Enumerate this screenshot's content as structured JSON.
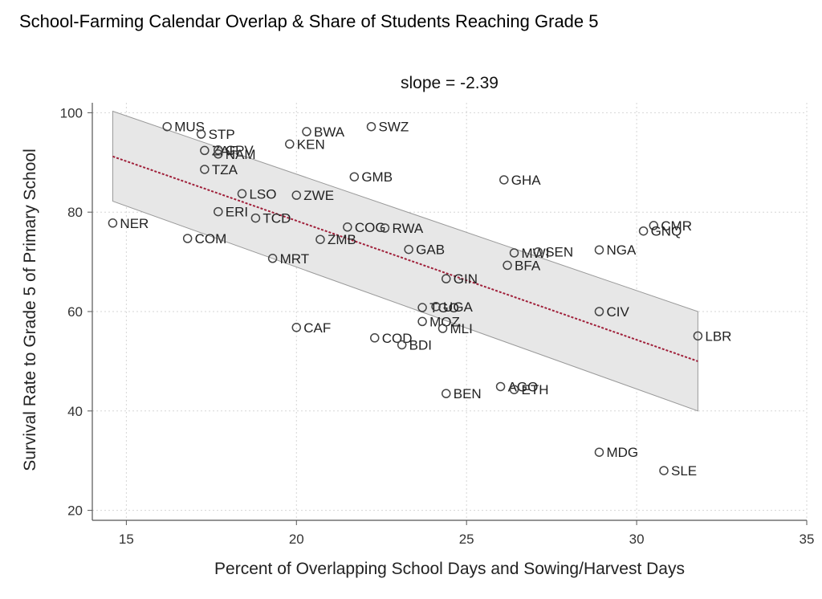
{
  "figure": {
    "title": "School-Farming Calendar Overlap & Share of Students Reaching Grade 5"
  },
  "chart_data": {
    "type": "scatter",
    "subtitle": "slope = -2.39",
    "xlabel": "Percent of Overlapping School Days and Sowing/Harvest Days",
    "ylabel": "Survival Rate to Grade 5 of Primary School",
    "xlim": [
      14,
      35
    ],
    "ylim": [
      18,
      102
    ],
    "xticks": [
      15,
      20,
      25,
      30,
      35
    ],
    "yticks": [
      20,
      40,
      60,
      80,
      100
    ],
    "grid": true,
    "colors": {
      "marker": "#444444",
      "fit": "#a0203a",
      "band": "#e7e7e7",
      "band_edge": "#999999",
      "grid": "#d6d6d6",
      "axis": "#555555"
    },
    "fit_line": {
      "x": [
        14.6,
        31.8
      ],
      "y": [
        91.2,
        50.0
      ]
    },
    "confidence_band": {
      "x": [
        14.6,
        31.8
      ],
      "upper": [
        100.3,
        60.0
      ],
      "lower": [
        82.2,
        40.0
      ]
    },
    "points": [
      {
        "label": "MUS",
        "x": 16.2,
        "y": 97.2
      },
      {
        "label": "STP",
        "x": 17.2,
        "y": 95.7
      },
      {
        "label": "ZAF",
        "x": 17.3,
        "y": 92.4
      },
      {
        "label": "CPV",
        "x": 17.7,
        "y": 92.5
      },
      {
        "label": "NAM",
        "x": 17.7,
        "y": 91.7
      },
      {
        "label": "TZA",
        "x": 17.3,
        "y": 88.6
      },
      {
        "label": "BWA",
        "x": 20.3,
        "y": 96.2
      },
      {
        "label": "SWZ",
        "x": 22.2,
        "y": 97.2
      },
      {
        "label": "KEN",
        "x": 19.8,
        "y": 93.7
      },
      {
        "label": "GMB",
        "x": 21.7,
        "y": 87.1
      },
      {
        "label": "GHA",
        "x": 26.1,
        "y": 86.5
      },
      {
        "label": "LSO",
        "x": 18.4,
        "y": 83.7
      },
      {
        "label": "ZWE",
        "x": 20.0,
        "y": 83.4
      },
      {
        "label": "ERI",
        "x": 17.7,
        "y": 80.1
      },
      {
        "label": "TCD",
        "x": 18.8,
        "y": 78.8
      },
      {
        "label": "NER",
        "x": 14.6,
        "y": 77.8
      },
      {
        "label": "COG",
        "x": 21.5,
        "y": 77.0
      },
      {
        "label": "RWA",
        "x": 22.6,
        "y": 76.8
      },
      {
        "label": "CMR",
        "x": 30.5,
        "y": 77.3
      },
      {
        "label": "GNQ",
        "x": 30.2,
        "y": 76.2
      },
      {
        "label": "COM",
        "x": 16.8,
        "y": 74.7
      },
      {
        "label": "ZMB",
        "x": 20.7,
        "y": 74.5
      },
      {
        "label": "GAB",
        "x": 23.3,
        "y": 72.5
      },
      {
        "label": "MWI",
        "x": 26.4,
        "y": 71.8
      },
      {
        "label": "SEN",
        "x": 27.1,
        "y": 72.0
      },
      {
        "label": "NGA",
        "x": 28.9,
        "y": 72.4
      },
      {
        "label": "MRT",
        "x": 19.3,
        "y": 70.7
      },
      {
        "label": "BFA",
        "x": 26.2,
        "y": 69.3
      },
      {
        "label": "GIN",
        "x": 24.4,
        "y": 66.6
      },
      {
        "label": "TGO",
        "x": 23.7,
        "y": 60.8
      },
      {
        "label": "UGA",
        "x": 24.1,
        "y": 61.0
      },
      {
        "label": "CIV",
        "x": 28.9,
        "y": 60.0
      },
      {
        "label": "MOZ",
        "x": 23.7,
        "y": 58.0
      },
      {
        "label": "MLI",
        "x": 24.3,
        "y": 56.6
      },
      {
        "label": "CAF",
        "x": 20.0,
        "y": 56.8
      },
      {
        "label": "LBR",
        "x": 31.8,
        "y": 55.1
      },
      {
        "label": "COD",
        "x": 22.3,
        "y": 54.7
      },
      {
        "label": "BDI",
        "x": 23.1,
        "y": 53.3
      },
      {
        "label": "AGO",
        "x": 26.0,
        "y": 44.9
      },
      {
        "label": "ETH",
        "x": 26.4,
        "y": 44.3
      },
      {
        "label": "BEN",
        "x": 24.4,
        "y": 43.5
      },
      {
        "label": "MDG",
        "x": 28.9,
        "y": 31.7
      },
      {
        "label": "SLE",
        "x": 30.8,
        "y": 28.0
      }
    ]
  }
}
